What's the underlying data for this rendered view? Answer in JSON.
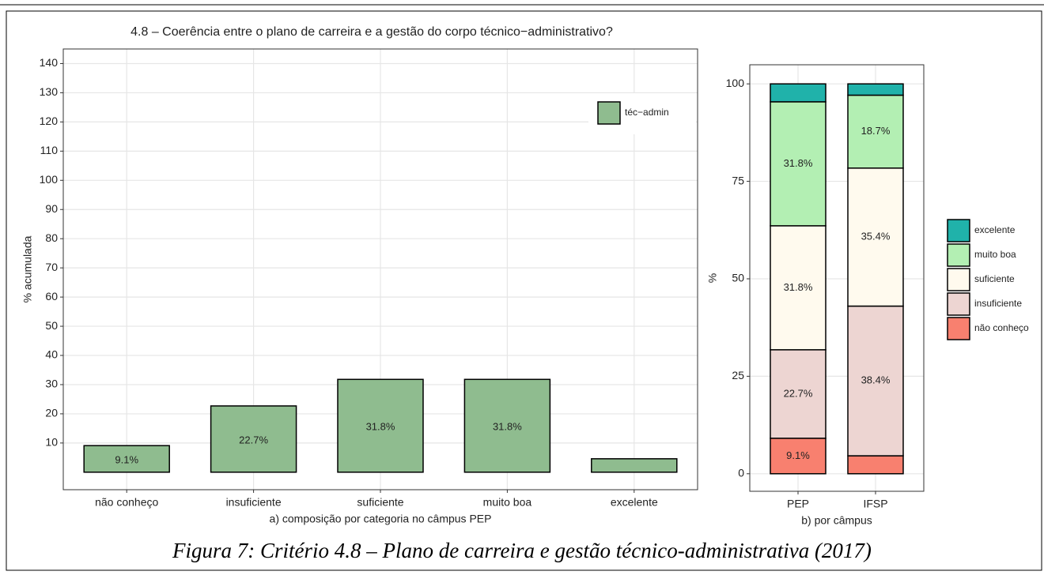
{
  "chart_data": [
    {
      "type": "bar",
      "title": "4.8 – Coerência entre o plano de carreira e a gestão do corpo técnico−administrativo?",
      "ylabel": "% acumulada",
      "xlabel": "a) composição por categoria no câmpus PEP",
      "categories": [
        "não conheço",
        "insuficiente",
        "suficiente",
        "muito boa",
        "excelente"
      ],
      "series": [
        {
          "name": "téc−admin",
          "color": "#8fbc8f",
          "values": [
            9.1,
            22.7,
            31.8,
            31.8,
            4.6
          ],
          "value_labels": [
            "9.1%",
            "22.7%",
            "31.8%",
            "31.8%",
            null
          ]
        }
      ],
      "ylim": [
        -6,
        145
      ],
      "yticks": [
        10,
        20,
        30,
        40,
        50,
        60,
        70,
        80,
        90,
        100,
        110,
        120,
        130,
        140
      ],
      "grid": true,
      "legend": "top-right"
    },
    {
      "type": "stacked_bar",
      "ylabel": "%",
      "xlabel": "b) por câmpus",
      "categories": [
        "PEP",
        "IFSP"
      ],
      "series": [
        {
          "name": "não conheço",
          "color": "#f8806f",
          "values": [
            9.1,
            4.6
          ],
          "value_labels": [
            "9.1%",
            null
          ]
        },
        {
          "name": "insuficiente",
          "color": "#edd5d2",
          "values": [
            22.7,
            38.4
          ],
          "value_labels": [
            "22.7%",
            "38.4%"
          ]
        },
        {
          "name": "suficiente",
          "color": "#fffaee",
          "values": [
            31.8,
            35.4
          ],
          "value_labels": [
            "31.8%",
            "35.4%"
          ]
        },
        {
          "name": "muito boa",
          "color": "#b3efb3",
          "values": [
            31.8,
            18.7
          ],
          "value_labels": [
            "31.8%",
            "18.7%"
          ]
        },
        {
          "name": "excelente",
          "color": "#20b2aa",
          "values": [
            4.6,
            2.9
          ],
          "value_labels": [
            null,
            null
          ]
        }
      ],
      "ylim": [
        -4.5,
        104.9
      ],
      "yticks": [
        0,
        25,
        50,
        75,
        100
      ],
      "grid": true,
      "legend": "right"
    }
  ],
  "caption": "Figura 7: Critério 4.8 – Plano de carreira e gestão técnico-administrativa (2017)"
}
